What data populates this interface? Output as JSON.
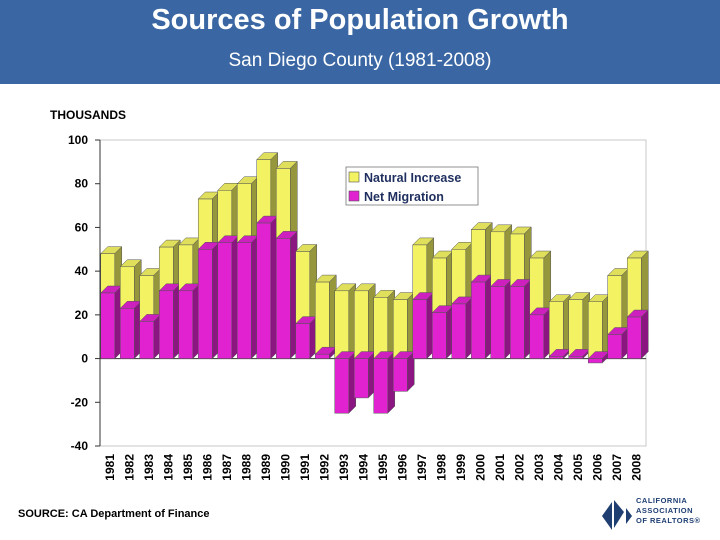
{
  "header": {
    "title": "Sources of Population Growth",
    "subtitle": "San Diego County (1981-2008)"
  },
  "footer": {
    "source": "SOURCE: CA Department of Finance",
    "logo_lines": [
      "CALIFORNIA",
      "ASSOCIATION",
      "OF REALTORS®"
    ]
  },
  "colors": {
    "header_bg": "#3a67a3",
    "natural_increase": "#f2f263",
    "net_migration": "#e022d0"
  },
  "chart_data": {
    "type": "bar",
    "stacked": true,
    "title": "Sources of Population Growth",
    "subtitle": "San Diego County (1981-2008)",
    "ylabel": "THOUSANDS",
    "xlabel": "",
    "ylim": [
      -40,
      100
    ],
    "yticks": [
      -40,
      -20,
      0,
      20,
      40,
      60,
      80,
      100
    ],
    "legend_position": "top-right",
    "categories": [
      "1981",
      "1982",
      "1983",
      "1984",
      "1985",
      "1986",
      "1987",
      "1988",
      "1989",
      "1990",
      "1991",
      "1992",
      "1993",
      "1994",
      "1995",
      "1996",
      "1997",
      "1998",
      "1999",
      "2000",
      "2001",
      "2002",
      "2003",
      "2004",
      "2005",
      "2006",
      "2007",
      "2008"
    ],
    "series": [
      {
        "name": "Natural Increase",
        "values": [
          18,
          19,
          21,
          20,
          21,
          23,
          24,
          27,
          29,
          32,
          33,
          33,
          31,
          31,
          28,
          27,
          25,
          25,
          25,
          24,
          25,
          24,
          26,
          25,
          26,
          26,
          27,
          27
        ]
      },
      {
        "name": "Net Migration",
        "values": [
          30,
          23,
          17,
          31,
          31,
          50,
          53,
          53,
          62,
          55,
          16,
          2,
          -25,
          -18,
          -25,
          -15,
          27,
          21,
          25,
          35,
          33,
          33,
          20,
          1,
          1,
          -2,
          11,
          19
        ]
      }
    ]
  }
}
